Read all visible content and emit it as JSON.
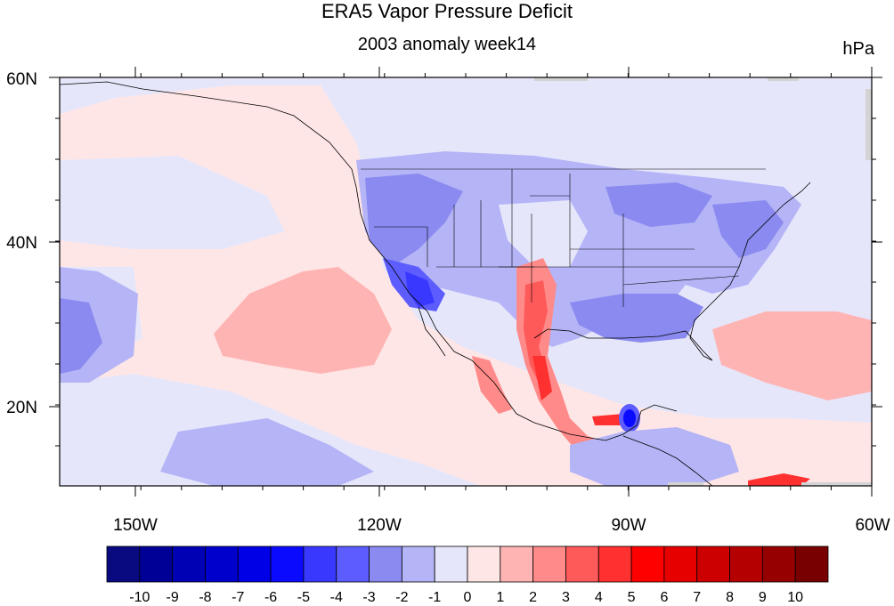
{
  "title": "ERA5 Vapor Pressure Deficit",
  "subtitle": "2003 anomaly week14",
  "units": "hPa",
  "map": {
    "projection": "cylindrical-equidistant",
    "lon_range": [
      -160,
      -60
    ],
    "lat_range": [
      10,
      60
    ],
    "lon_ticks": [
      "150W",
      "120W",
      "90W",
      "60W"
    ],
    "lat_ticks": [
      "60N",
      "40N",
      "20N"
    ],
    "features": [
      "coastlines",
      "US state boundaries",
      "national boundaries"
    ]
  },
  "colorbar": {
    "labels": [
      "-10",
      "-9",
      "-8",
      "-7",
      "-6",
      "-5",
      "-4",
      "-3",
      "-2",
      "-1",
      "0",
      "1",
      "2",
      "3",
      "4",
      "5",
      "6",
      "7",
      "8",
      "9",
      "10"
    ],
    "colors": [
      "#0a0a80",
      "#000096",
      "#0000b4",
      "#0000cd",
      "#0000e6",
      "#0a0aff",
      "#3838ff",
      "#5c5cff",
      "#8a8af0",
      "#b4b4f7",
      "#e6e6fb",
      "#ffe6e6",
      "#ffb4b4",
      "#ff8a8a",
      "#ff5a5a",
      "#ff3030",
      "#ff0000",
      "#e60000",
      "#cc0000",
      "#b40000",
      "#960000",
      "#780000"
    ]
  }
}
